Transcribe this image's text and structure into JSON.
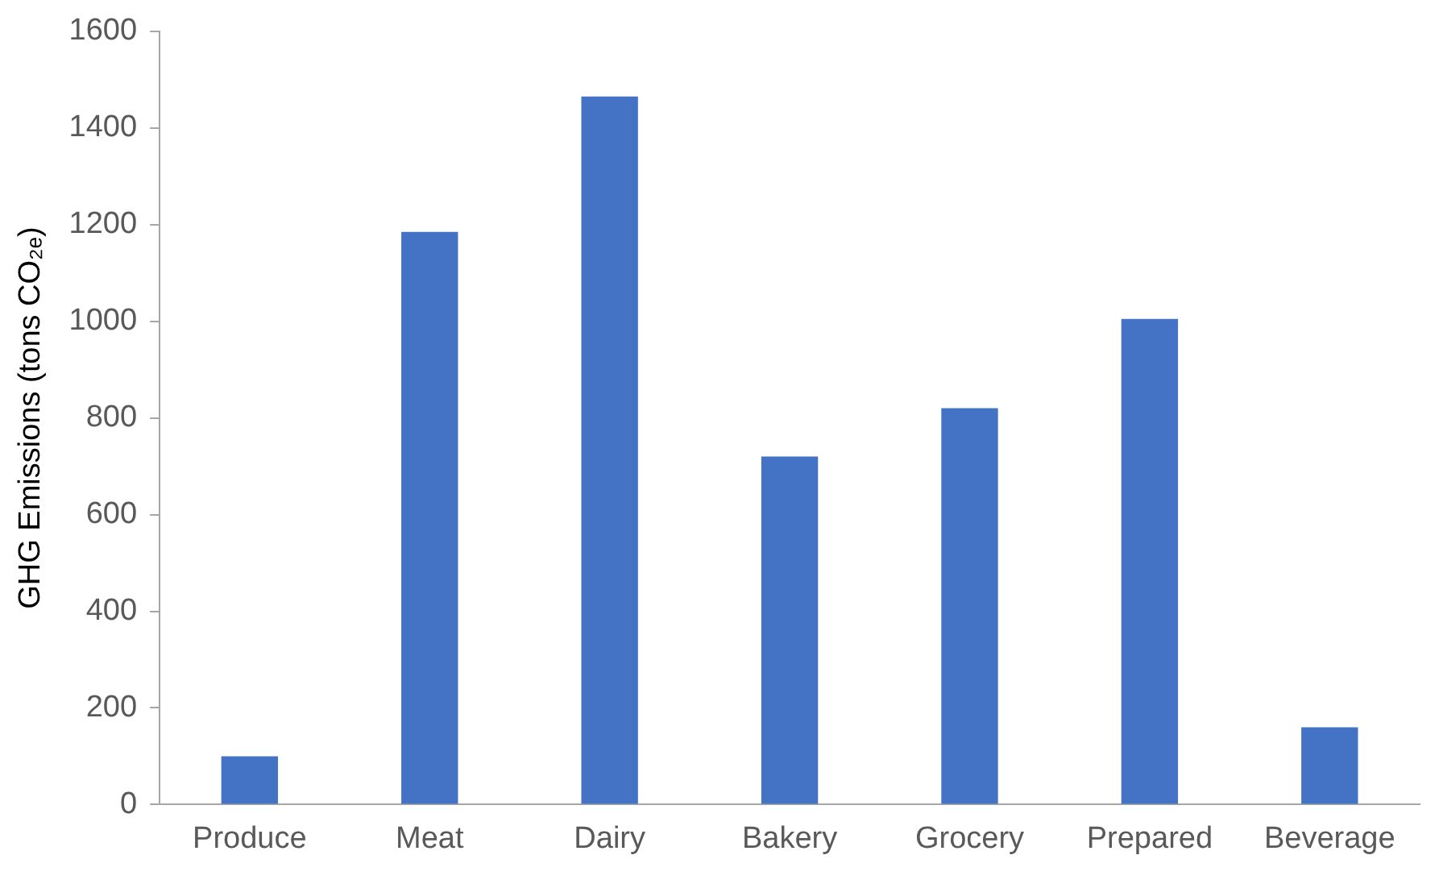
{
  "chart_data": {
    "type": "bar",
    "ylabel": "GHG Emissions (tons CO₂ₑ)",
    "categories": [
      "Produce",
      "Meat",
      "Dairy",
      "Bakery",
      "Grocery",
      "Prepared",
      "Beverage"
    ],
    "values": [
      100,
      1185,
      1465,
      720,
      820,
      1005,
      160
    ],
    "color": "#4472c4",
    "ylim": [
      0,
      1600
    ],
    "yticks": [
      0,
      200,
      400,
      600,
      800,
      1000,
      1200,
      1400,
      1600
    ],
    "grid": false,
    "legend": false
  }
}
